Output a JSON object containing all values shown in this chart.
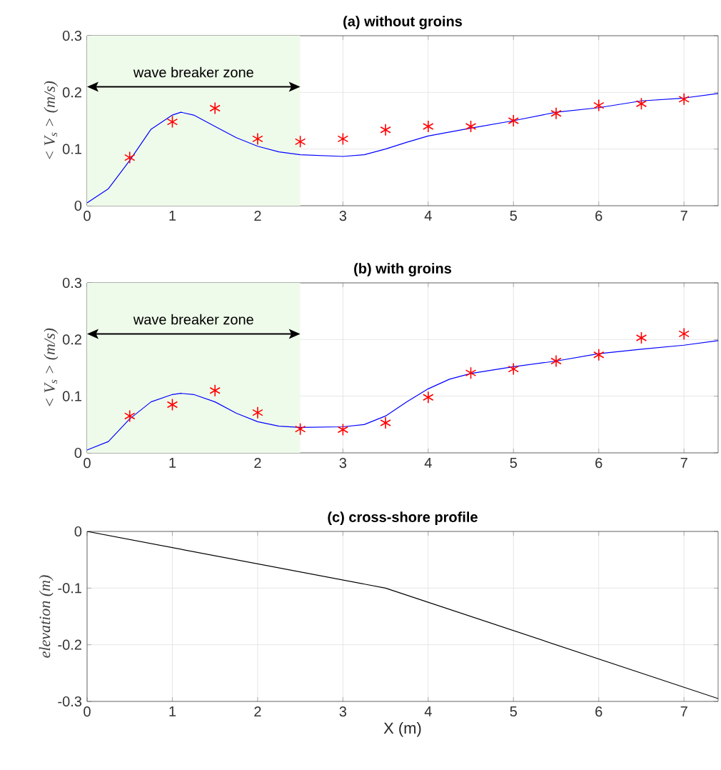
{
  "chart_data": [
    {
      "type": "line",
      "title": "(a) without groins",
      "ylabel": "< V$_{s}$ > (m/s)",
      "xlim": [
        0,
        7.4
      ],
      "ylim": [
        0,
        0.3
      ],
      "xticks": [
        0,
        1,
        2,
        3,
        4,
        5,
        6,
        7
      ],
      "yticks": [
        0,
        0.1,
        0.2,
        0.3
      ],
      "grid": true,
      "bands": [
        {
          "axis": "x",
          "from": 0,
          "to": 2.5,
          "label": "wave breaker zone",
          "color": "#effbea"
        }
      ],
      "series": [
        {
          "type": "line",
          "color": "#0000ff",
          "marker": "none",
          "x": [
            0,
            0.25,
            0.5,
            0.75,
            1.0,
            1.1,
            1.25,
            1.5,
            1.75,
            2.0,
            2.25,
            2.5,
            3.0,
            3.25,
            3.5,
            3.75,
            4.0,
            4.5,
            5.0,
            5.5,
            6.0,
            6.5,
            7.0,
            7.4
          ],
          "values": [
            0.005,
            0.03,
            0.08,
            0.135,
            0.16,
            0.165,
            0.16,
            0.14,
            0.12,
            0.105,
            0.095,
            0.09,
            0.087,
            0.09,
            0.1,
            0.112,
            0.123,
            0.137,
            0.15,
            0.165,
            0.173,
            0.185,
            0.19,
            0.198
          ]
        },
        {
          "type": "scatter",
          "color": "#ff0000",
          "marker": "cross",
          "x": [
            0.5,
            1,
            1.5,
            2,
            2.5,
            3,
            3.5,
            4,
            4.5,
            5,
            5.5,
            6,
            6.5,
            7
          ],
          "values": [
            0.085,
            0.148,
            0.172,
            0.118,
            0.113,
            0.118,
            0.134,
            0.14,
            0.14,
            0.15,
            0.163,
            0.177,
            0.18,
            0.188
          ]
        }
      ]
    },
    {
      "type": "line",
      "title": "(b) with groins",
      "ylabel": "< V$_{s}$ > (m/s)",
      "xlim": [
        0,
        7.4
      ],
      "ylim": [
        0,
        0.3
      ],
      "xticks": [
        0,
        1,
        2,
        3,
        4,
        5,
        6,
        7
      ],
      "yticks": [
        0,
        0.1,
        0.2,
        0.3
      ],
      "grid": true,
      "bands": [
        {
          "axis": "x",
          "from": 0,
          "to": 2.5,
          "label": "wave breaker zone",
          "color": "#effbea"
        }
      ],
      "series": [
        {
          "type": "line",
          "color": "#0000ff",
          "marker": "none",
          "x": [
            0,
            0.25,
            0.5,
            0.75,
            1.0,
            1.1,
            1.25,
            1.5,
            1.75,
            2.0,
            2.25,
            2.5,
            3.0,
            3.25,
            3.5,
            3.75,
            4.0,
            4.25,
            4.5,
            5.0,
            5.5,
            6.0,
            6.5,
            7.0,
            7.4
          ],
          "values": [
            0.005,
            0.02,
            0.06,
            0.09,
            0.103,
            0.105,
            0.103,
            0.09,
            0.07,
            0.055,
            0.047,
            0.045,
            0.046,
            0.05,
            0.065,
            0.09,
            0.113,
            0.13,
            0.14,
            0.152,
            0.162,
            0.175,
            0.183,
            0.19,
            0.198
          ]
        },
        {
          "type": "scatter",
          "color": "#ff0000",
          "marker": "cross",
          "x": [
            0.5,
            1,
            1.5,
            2,
            2.5,
            3,
            3.5,
            4,
            4.5,
            5,
            5.5,
            6,
            6.5,
            7
          ],
          "values": [
            0.065,
            0.085,
            0.11,
            0.071,
            0.042,
            0.041,
            0.053,
            0.098,
            0.141,
            0.148,
            0.162,
            0.173,
            0.203,
            0.21
          ]
        }
      ]
    },
    {
      "type": "line",
      "title": "(c) cross-shore profile",
      "xlabel": "X (m)",
      "ylabel": "elevation (m)",
      "xlim": [
        0,
        7.4
      ],
      "ylim": [
        -0.3,
        0
      ],
      "xticks": [
        0,
        1,
        2,
        3,
        4,
        5,
        6,
        7
      ],
      "yticks": [
        -0.3,
        -0.2,
        -0.1,
        0
      ],
      "grid": true,
      "series": [
        {
          "type": "line",
          "color": "#000000",
          "marker": "none",
          "x": [
            0,
            3.5,
            7.4
          ],
          "values": [
            0,
            -0.1,
            -0.295
          ]
        }
      ]
    }
  ]
}
